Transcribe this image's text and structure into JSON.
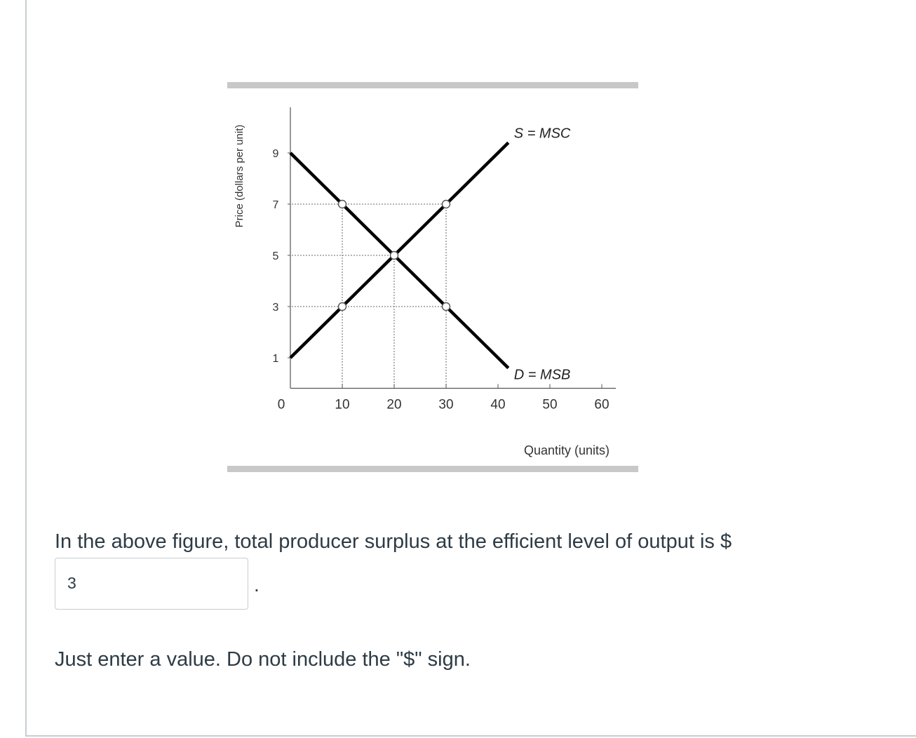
{
  "question": {
    "text": "In the above figure, total producer surplus at the efficient level of output is $",
    "answer_value": "3",
    "trailing_period": ".",
    "note": "Just enter a value. Do not include the \"$\" sign."
  },
  "chart_data": {
    "type": "line",
    "xlabel": "Quantity (units)",
    "ylabel": "Price (dollars per unit)",
    "x_ticks": [
      "0",
      "10",
      "20",
      "30",
      "40",
      "50",
      "60"
    ],
    "y_ticks": [
      "1",
      "3",
      "5",
      "7",
      "9"
    ],
    "xlim": [
      0,
      60
    ],
    "ylim": [
      0,
      10
    ],
    "series": [
      {
        "name": "S = MSC",
        "x": [
          0,
          42
        ],
        "y": [
          1,
          9.4
        ]
      },
      {
        "name": "D = MSB",
        "x": [
          0,
          42
        ],
        "y": [
          9,
          0.6
        ]
      }
    ],
    "highlighted_points": [
      {
        "x": 10,
        "y": 7
      },
      {
        "x": 30,
        "y": 7
      },
      {
        "x": 20,
        "y": 5
      },
      {
        "x": 10,
        "y": 3
      },
      {
        "x": 30,
        "y": 3
      }
    ],
    "reference_lines": [
      {
        "axis": "y",
        "value": 7,
        "x_to": 30
      },
      {
        "axis": "y",
        "value": 5,
        "x_to": 20
      },
      {
        "axis": "y",
        "value": 3,
        "x_to": 30
      },
      {
        "axis": "x",
        "value": 10,
        "y_to": 7
      },
      {
        "axis": "x",
        "value": 20,
        "y_to": 5
      },
      {
        "axis": "x",
        "value": 30,
        "y_to": 7
      }
    ],
    "colors": {
      "curves": "#000000",
      "axes": "#555555",
      "frame_bars": "#c8c8c8",
      "dotted": "#888888"
    }
  }
}
